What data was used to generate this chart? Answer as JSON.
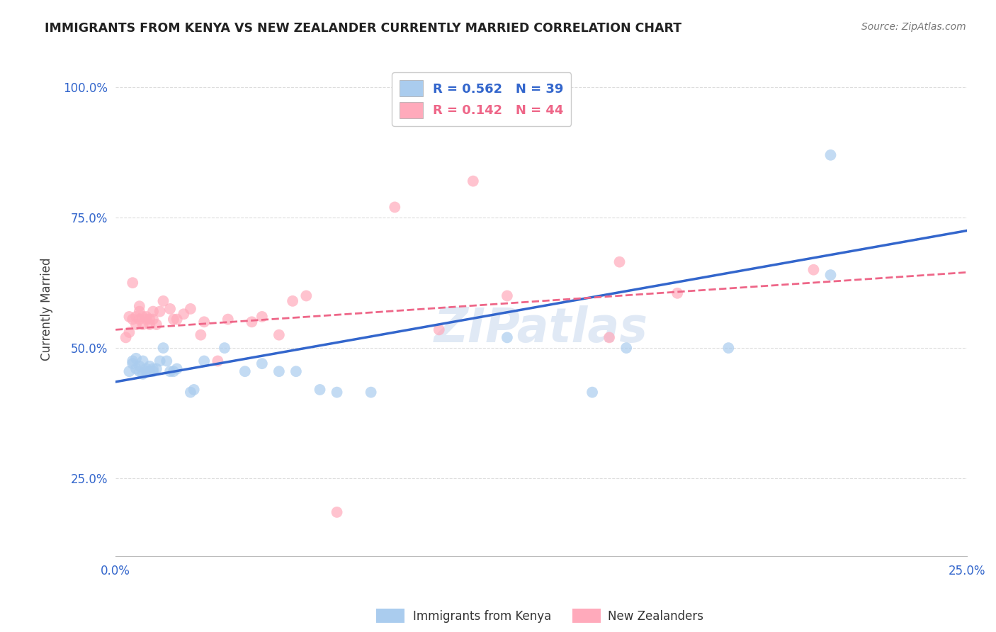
{
  "title": "IMMIGRANTS FROM KENYA VS NEW ZEALANDER CURRENTLY MARRIED CORRELATION CHART",
  "source": "Source: ZipAtlas.com",
  "ylabel": "Currently Married",
  "xlim": [
    0.0,
    0.25
  ],
  "ylim": [
    0.1,
    1.05
  ],
  "x_ticks": [
    0.0,
    0.05,
    0.1,
    0.15,
    0.2,
    0.25
  ],
  "x_tick_labels": [
    "0.0%",
    "",
    "",
    "",
    "",
    "25.0%"
  ],
  "y_ticks": [
    0.25,
    0.5,
    0.75,
    1.0
  ],
  "y_tick_labels": [
    "25.0%",
    "50.0%",
    "75.0%",
    "100.0%"
  ],
  "legend_r_blue": "R = 0.562",
  "legend_n_blue": "N = 39",
  "legend_r_pink": "R = 0.142",
  "legend_n_pink": "N = 44",
  "blue_color": "#aaccee",
  "blue_line_color": "#3366cc",
  "pink_color": "#ffaabb",
  "pink_line_color": "#ee6688",
  "blue_line": {
    "x0": 0.0,
    "y0": 0.435,
    "x1": 0.25,
    "y1": 0.725
  },
  "pink_line": {
    "x0": 0.0,
    "y0": 0.535,
    "x1": 0.25,
    "y1": 0.645
  },
  "blue_scatter": [
    [
      0.004,
      0.455
    ],
    [
      0.005,
      0.47
    ],
    [
      0.005,
      0.475
    ],
    [
      0.006,
      0.48
    ],
    [
      0.006,
      0.46
    ],
    [
      0.007,
      0.465
    ],
    [
      0.007,
      0.455
    ],
    [
      0.008,
      0.475
    ],
    [
      0.008,
      0.45
    ],
    [
      0.009,
      0.455
    ],
    [
      0.009,
      0.46
    ],
    [
      0.01,
      0.455
    ],
    [
      0.01,
      0.465
    ],
    [
      0.011,
      0.455
    ],
    [
      0.011,
      0.46
    ],
    [
      0.012,
      0.46
    ],
    [
      0.013,
      0.475
    ],
    [
      0.014,
      0.5
    ],
    [
      0.015,
      0.475
    ],
    [
      0.016,
      0.455
    ],
    [
      0.017,
      0.455
    ],
    [
      0.018,
      0.46
    ],
    [
      0.022,
      0.415
    ],
    [
      0.023,
      0.42
    ],
    [
      0.026,
      0.475
    ],
    [
      0.032,
      0.5
    ],
    [
      0.038,
      0.455
    ],
    [
      0.043,
      0.47
    ],
    [
      0.048,
      0.455
    ],
    [
      0.053,
      0.455
    ],
    [
      0.06,
      0.42
    ],
    [
      0.065,
      0.415
    ],
    [
      0.075,
      0.415
    ],
    [
      0.115,
      0.52
    ],
    [
      0.14,
      0.415
    ],
    [
      0.15,
      0.5
    ],
    [
      0.18,
      0.5
    ],
    [
      0.21,
      0.64
    ],
    [
      0.21,
      0.87
    ]
  ],
  "pink_scatter": [
    [
      0.003,
      0.52
    ],
    [
      0.004,
      0.53
    ],
    [
      0.004,
      0.56
    ],
    [
      0.005,
      0.555
    ],
    [
      0.005,
      0.625
    ],
    [
      0.006,
      0.545
    ],
    [
      0.006,
      0.56
    ],
    [
      0.007,
      0.555
    ],
    [
      0.007,
      0.57
    ],
    [
      0.007,
      0.58
    ],
    [
      0.008,
      0.545
    ],
    [
      0.008,
      0.56
    ],
    [
      0.009,
      0.555
    ],
    [
      0.009,
      0.56
    ],
    [
      0.01,
      0.545
    ],
    [
      0.01,
      0.555
    ],
    [
      0.011,
      0.555
    ],
    [
      0.011,
      0.57
    ],
    [
      0.012,
      0.545
    ],
    [
      0.013,
      0.57
    ],
    [
      0.014,
      0.59
    ],
    [
      0.016,
      0.575
    ],
    [
      0.017,
      0.555
    ],
    [
      0.018,
      0.555
    ],
    [
      0.02,
      0.565
    ],
    [
      0.022,
      0.575
    ],
    [
      0.025,
      0.525
    ],
    [
      0.026,
      0.55
    ],
    [
      0.03,
      0.475
    ],
    [
      0.033,
      0.555
    ],
    [
      0.04,
      0.55
    ],
    [
      0.043,
      0.56
    ],
    [
      0.048,
      0.525
    ],
    [
      0.052,
      0.59
    ],
    [
      0.056,
      0.6
    ],
    [
      0.065,
      0.185
    ],
    [
      0.082,
      0.77
    ],
    [
      0.095,
      0.535
    ],
    [
      0.105,
      0.82
    ],
    [
      0.115,
      0.6
    ],
    [
      0.145,
      0.52
    ],
    [
      0.148,
      0.665
    ],
    [
      0.165,
      0.605
    ],
    [
      0.205,
      0.65
    ]
  ],
  "watermark": "ZIPatlas",
  "watermark_font": 48,
  "background_color": "#ffffff",
  "grid_color": "#dddddd"
}
